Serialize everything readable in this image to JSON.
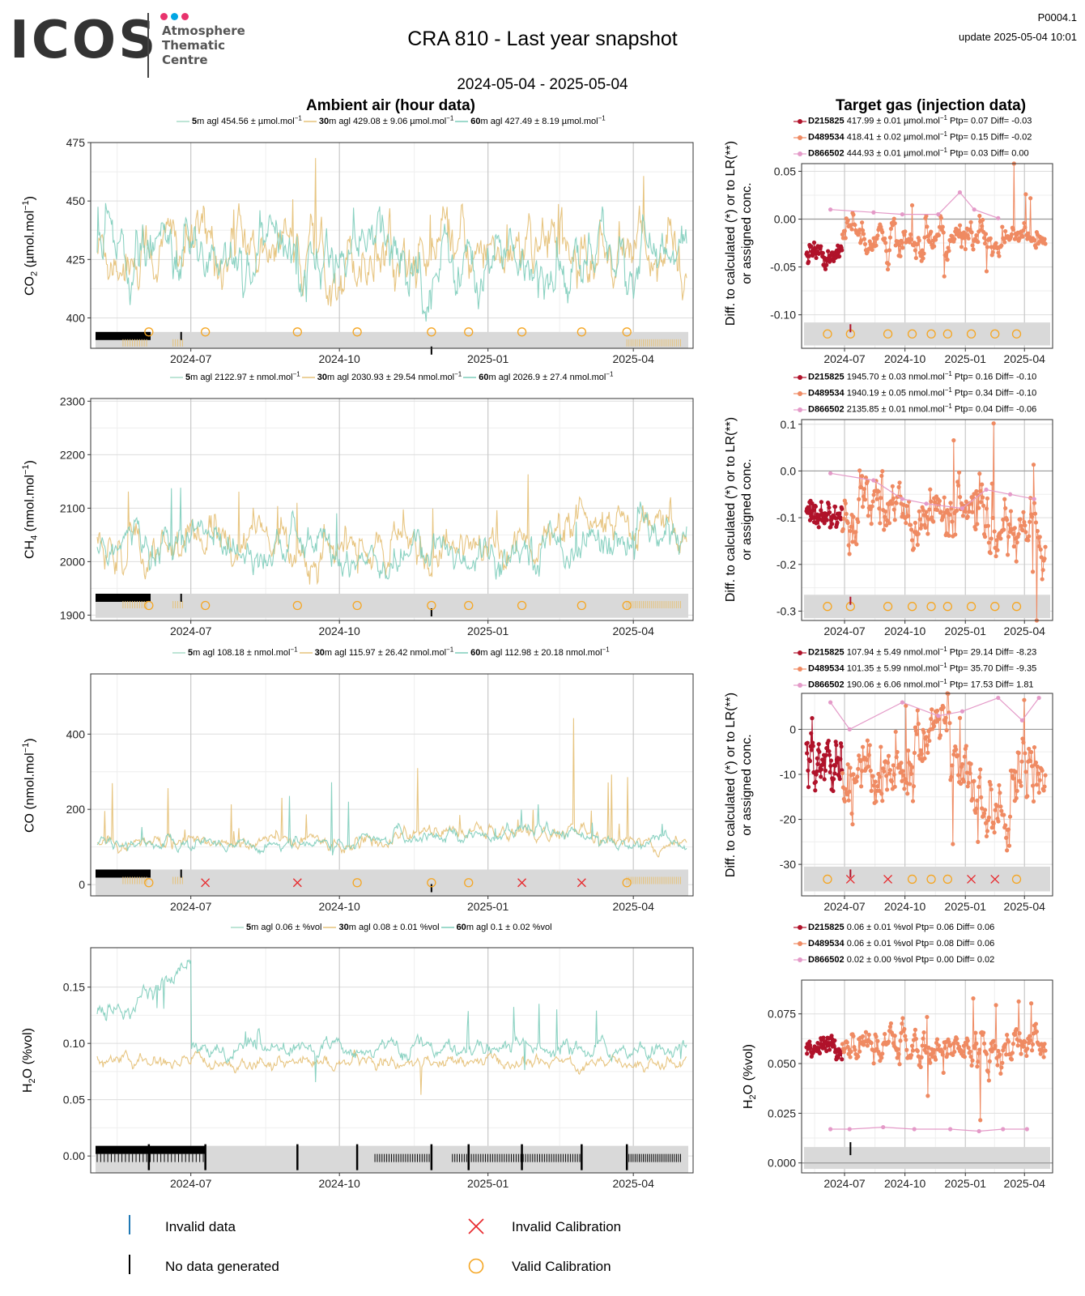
{
  "header": {
    "logo_text": "ICOS",
    "logo_sub": [
      "Atmosphere",
      "Thematic",
      "Centre"
    ],
    "logo_dot_colors": [
      "#e8336d",
      "#00a6e3",
      "#e8336d"
    ],
    "title": "CRA 810 - Last year snapshot",
    "subtitle": "2024-05-04 - 2025-05-04",
    "product_id": "P0004.1",
    "update": "update  2025-05-04 10:01"
  },
  "sections": {
    "ambient": "Ambient air (hour data)",
    "target": "Target gas (injection data)"
  },
  "colors": {
    "5m": "#a8dcc8",
    "30m": "#e6c27a",
    "60m": "#7ecdbb",
    "D215825": "#b0122a",
    "D489534": "#ef8a62",
    "D866502": "#e49ac8",
    "valid": "#f5a623",
    "invalid": "#e8262a",
    "nodata": "#000000",
    "invdata": "#1f78b4"
  },
  "x_ticks": [
    "2024-07",
    "2024-10",
    "2025-01",
    "2025-04"
  ],
  "target_ylabel": [
    "Diff. to calculated (*) or to LR(**)",
    "or assigned conc."
  ],
  "panels": [
    {
      "id": "co2",
      "ylabel_main": "CO",
      "ylabel_sub": "2",
      "ylabel_rest": " (µmol.mol",
      "ylabel_sup": "−1",
      "ylabel_end": ")",
      "legend": [
        {
          "h": "5",
          "text": "m agl 454.56 ±  µmol.mol",
          "sup": "−1"
        },
        {
          "h": "30",
          "text": "m agl 429.08 ± 9.06 µmol.mol",
          "sup": "−1"
        },
        {
          "h": "60",
          "text": "m agl 427.49 ± 8.19 µmol.mol",
          "sup": "−1"
        }
      ],
      "target_legend": [
        {
          "id": "D215825",
          "text": " 417.99 ± 0.01 µmol.mol",
          "sup": "−1",
          "rest": " Ptp= 0.07 Diff= -0.03"
        },
        {
          "id": "D489534",
          "text": " 418.41 ± 0.02 µmol.mol",
          "sup": "−1",
          "rest": " Ptp= 0.15 Diff= -0.02"
        },
        {
          "id": "D866502",
          "text": " 444.93 ± 0.01 µmol.mol",
          "sup": "−1",
          "rest": " Ptp= 0.03 Diff= 0.00"
        }
      ]
    },
    {
      "id": "ch4",
      "ylabel_main": "CH",
      "ylabel_sub": "4",
      "ylabel_rest": " (nmol.mol",
      "ylabel_sup": "−1",
      "ylabel_end": ")",
      "legend": [
        {
          "h": "5",
          "text": "m agl 2122.97 ±  nmol.mol",
          "sup": "−1"
        },
        {
          "h": "30",
          "text": "m agl 2030.93 ± 29.54 nmol.mol",
          "sup": "−1"
        },
        {
          "h": "60",
          "text": "m agl 2026.9 ± 27.4 nmol.mol",
          "sup": "−1"
        }
      ],
      "target_legend": [
        {
          "id": "D215825",
          "text": " 1945.70 ± 0.03 nmol.mol",
          "sup": "−1",
          "rest": " Ptp= 0.16 Diff= -0.10"
        },
        {
          "id": "D489534",
          "text": " 1940.19 ± 0.05 nmol.mol",
          "sup": "−1",
          "rest": " Ptp= 0.34 Diff= -0.10"
        },
        {
          "id": "D866502",
          "text": " 2135.85 ± 0.01 nmol.mol",
          "sup": "−1",
          "rest": " Ptp= 0.04 Diff= -0.06"
        }
      ]
    },
    {
      "id": "co",
      "ylabel_main": "CO",
      "ylabel_sub": "",
      "ylabel_rest": " (nmol.mol",
      "ylabel_sup": "−1",
      "ylabel_end": ")",
      "legend": [
        {
          "h": "5",
          "text": "m agl 108.18 ±  nmol.mol",
          "sup": "−1"
        },
        {
          "h": "30",
          "text": "m agl 115.97 ± 26.42 nmol.mol",
          "sup": "−1"
        },
        {
          "h": "60",
          "text": "m agl 112.98 ± 20.18 nmol.mol",
          "sup": "−1"
        }
      ],
      "target_legend": [
        {
          "id": "D215825",
          "text": " 107.94 ± 5.49 nmol.mol",
          "sup": "−1",
          "rest": " Ptp= 29.14 Diff= -8.23"
        },
        {
          "id": "D489534",
          "text": " 101.35 ± 5.99 nmol.mol",
          "sup": "−1",
          "rest": " Ptp= 35.70 Diff= -9.35"
        },
        {
          "id": "D866502",
          "text": " 190.06 ± 6.06 nmol.mol",
          "sup": "−1",
          "rest": " Ptp= 17.53 Diff= 1.81"
        }
      ]
    },
    {
      "id": "h2o",
      "ylabel_main": "H",
      "ylabel_sub": "2",
      "ylabel_rest": "O (%vol)",
      "ylabel_sup": "",
      "ylabel_end": "",
      "legend": [
        {
          "h": "5",
          "text": "m agl 0.06 ±  %vol",
          "sup": ""
        },
        {
          "h": "30",
          "text": "m agl 0.08 ± 0.01 %vol",
          "sup": ""
        },
        {
          "h": "60",
          "text": "m agl 0.1 ± 0.02 %vol",
          "sup": ""
        }
      ],
      "target_legend": [
        {
          "id": "D215825",
          "text": " 0.06 ± 0.01 %vol",
          "sup": "",
          "rest": " Ptp= 0.06 Diff= 0.06"
        },
        {
          "id": "D489534",
          "text": " 0.06 ± 0.01 %vol",
          "sup": "",
          "rest": " Ptp= 0.08 Diff= 0.06"
        },
        {
          "id": "D866502",
          "text": " 0.02 ± 0.00 %vol",
          "sup": "",
          "rest": " Ptp= 0.00 Diff= 0.02"
        }
      ],
      "target_ylabel": "H2O (%vol)"
    }
  ],
  "chart_data": [
    {
      "type": "line",
      "title": "CO2 ambient air (hour data)",
      "ylabel": "CO2 (µmol.mol-1)",
      "ylim": [
        387,
        475
      ],
      "yticks": [
        400,
        425,
        450,
        475
      ],
      "x_range": [
        "2024-05-04",
        "2025-05-04"
      ],
      "series": [
        {
          "name": "30m agl",
          "mean": 429.08,
          "sd": 9.06
        },
        {
          "name": "60m agl",
          "mean": 427.49,
          "sd": 8.19
        }
      ],
      "valid_calibrations": [
        "2024-06-05",
        "2024-07-10",
        "2024-09-05",
        "2024-10-12",
        "2024-11-27",
        "2024-12-20",
        "2025-01-22",
        "2025-02-28",
        "2025-03-28"
      ]
    },
    {
      "type": "line",
      "title": "CH4 ambient air (hour data)",
      "ylabel": "CH4 (nmol.mol-1)",
      "ylim": [
        1890,
        2305
      ],
      "yticks": [
        1900,
        2000,
        2100,
        2200,
        2300
      ],
      "x_range": [
        "2024-05-04",
        "2025-05-04"
      ],
      "series": [
        {
          "name": "30m agl",
          "mean": 2030.93,
          "sd": 29.54
        },
        {
          "name": "60m agl",
          "mean": 2026.9,
          "sd": 27.4
        }
      ]
    },
    {
      "type": "line",
      "title": "CO ambient air (hour data)",
      "ylabel": "CO (nmol.mol-1)",
      "ylim": [
        -30,
        560
      ],
      "yticks": [
        0,
        200,
        400
      ],
      "x_range": [
        "2024-05-04",
        "2025-05-04"
      ],
      "series": [
        {
          "name": "30m agl",
          "mean": 115.97,
          "sd": 26.42
        },
        {
          "name": "60m agl",
          "mean": 112.98,
          "sd": 20.18
        }
      ],
      "invalid_calibrations": [
        "2024-07-10",
        "2024-09-05",
        "2025-01-22",
        "2025-02-28"
      ]
    },
    {
      "type": "line",
      "title": "H2O ambient air (hour data)",
      "ylabel": "H2O (%vol)",
      "ylim": [
        -0.015,
        0.185
      ],
      "yticks": [
        0.0,
        0.05,
        0.1,
        0.15
      ],
      "x_range": [
        "2024-05-04",
        "2025-05-04"
      ],
      "series": [
        {
          "name": "5m agl",
          "mean": 0.06
        },
        {
          "name": "30m agl",
          "mean": 0.08,
          "sd": 0.01
        },
        {
          "name": "60m agl",
          "mean": 0.1,
          "sd": 0.02
        }
      ]
    },
    {
      "type": "scatter",
      "title": "Target gas CO2",
      "ylim": [
        -0.135,
        0.058
      ],
      "yticks": [
        -0.1,
        -0.05,
        0.0,
        0.05
      ],
      "series": [
        {
          "name": "D215825",
          "mean": -0.03
        },
        {
          "name": "D489534",
          "mean": -0.02
        },
        {
          "name": "D866502",
          "mean": 0.0
        }
      ]
    },
    {
      "type": "scatter",
      "title": "Target gas CH4",
      "ylim": [
        -0.32,
        0.11
      ],
      "yticks": [
        -0.3,
        -0.2,
        -0.1,
        0.0,
        0.1
      ],
      "series": [
        {
          "name": "D215825",
          "mean": -0.1
        },
        {
          "name": "D489534",
          "mean": -0.1
        },
        {
          "name": "D866502",
          "mean": -0.06
        }
      ]
    },
    {
      "type": "scatter",
      "title": "Target gas CO",
      "ylim": [
        -37,
        8
      ],
      "yticks": [
        -30,
        -20,
        -10,
        0
      ],
      "series": [
        {
          "name": "D215825",
          "mean": -8.23
        },
        {
          "name": "D489534",
          "mean": -9.35
        },
        {
          "name": "D866502",
          "mean": 1.81
        }
      ]
    },
    {
      "type": "scatter",
      "title": "Target gas H2O",
      "ylim": [
        -0.005,
        0.092
      ],
      "yticks": [
        0.0,
        0.025,
        0.05,
        0.075
      ],
      "series": [
        {
          "name": "D215825",
          "mean": 0.06
        },
        {
          "name": "D489534",
          "mean": 0.06
        },
        {
          "name": "D866502",
          "mean": 0.02
        }
      ]
    }
  ],
  "bottom_legend": {
    "invalid_data": "Invalid data",
    "no_data": "No data generated",
    "invalid_cal": "Invalid Calibration",
    "valid_cal": "Valid Calibration"
  }
}
